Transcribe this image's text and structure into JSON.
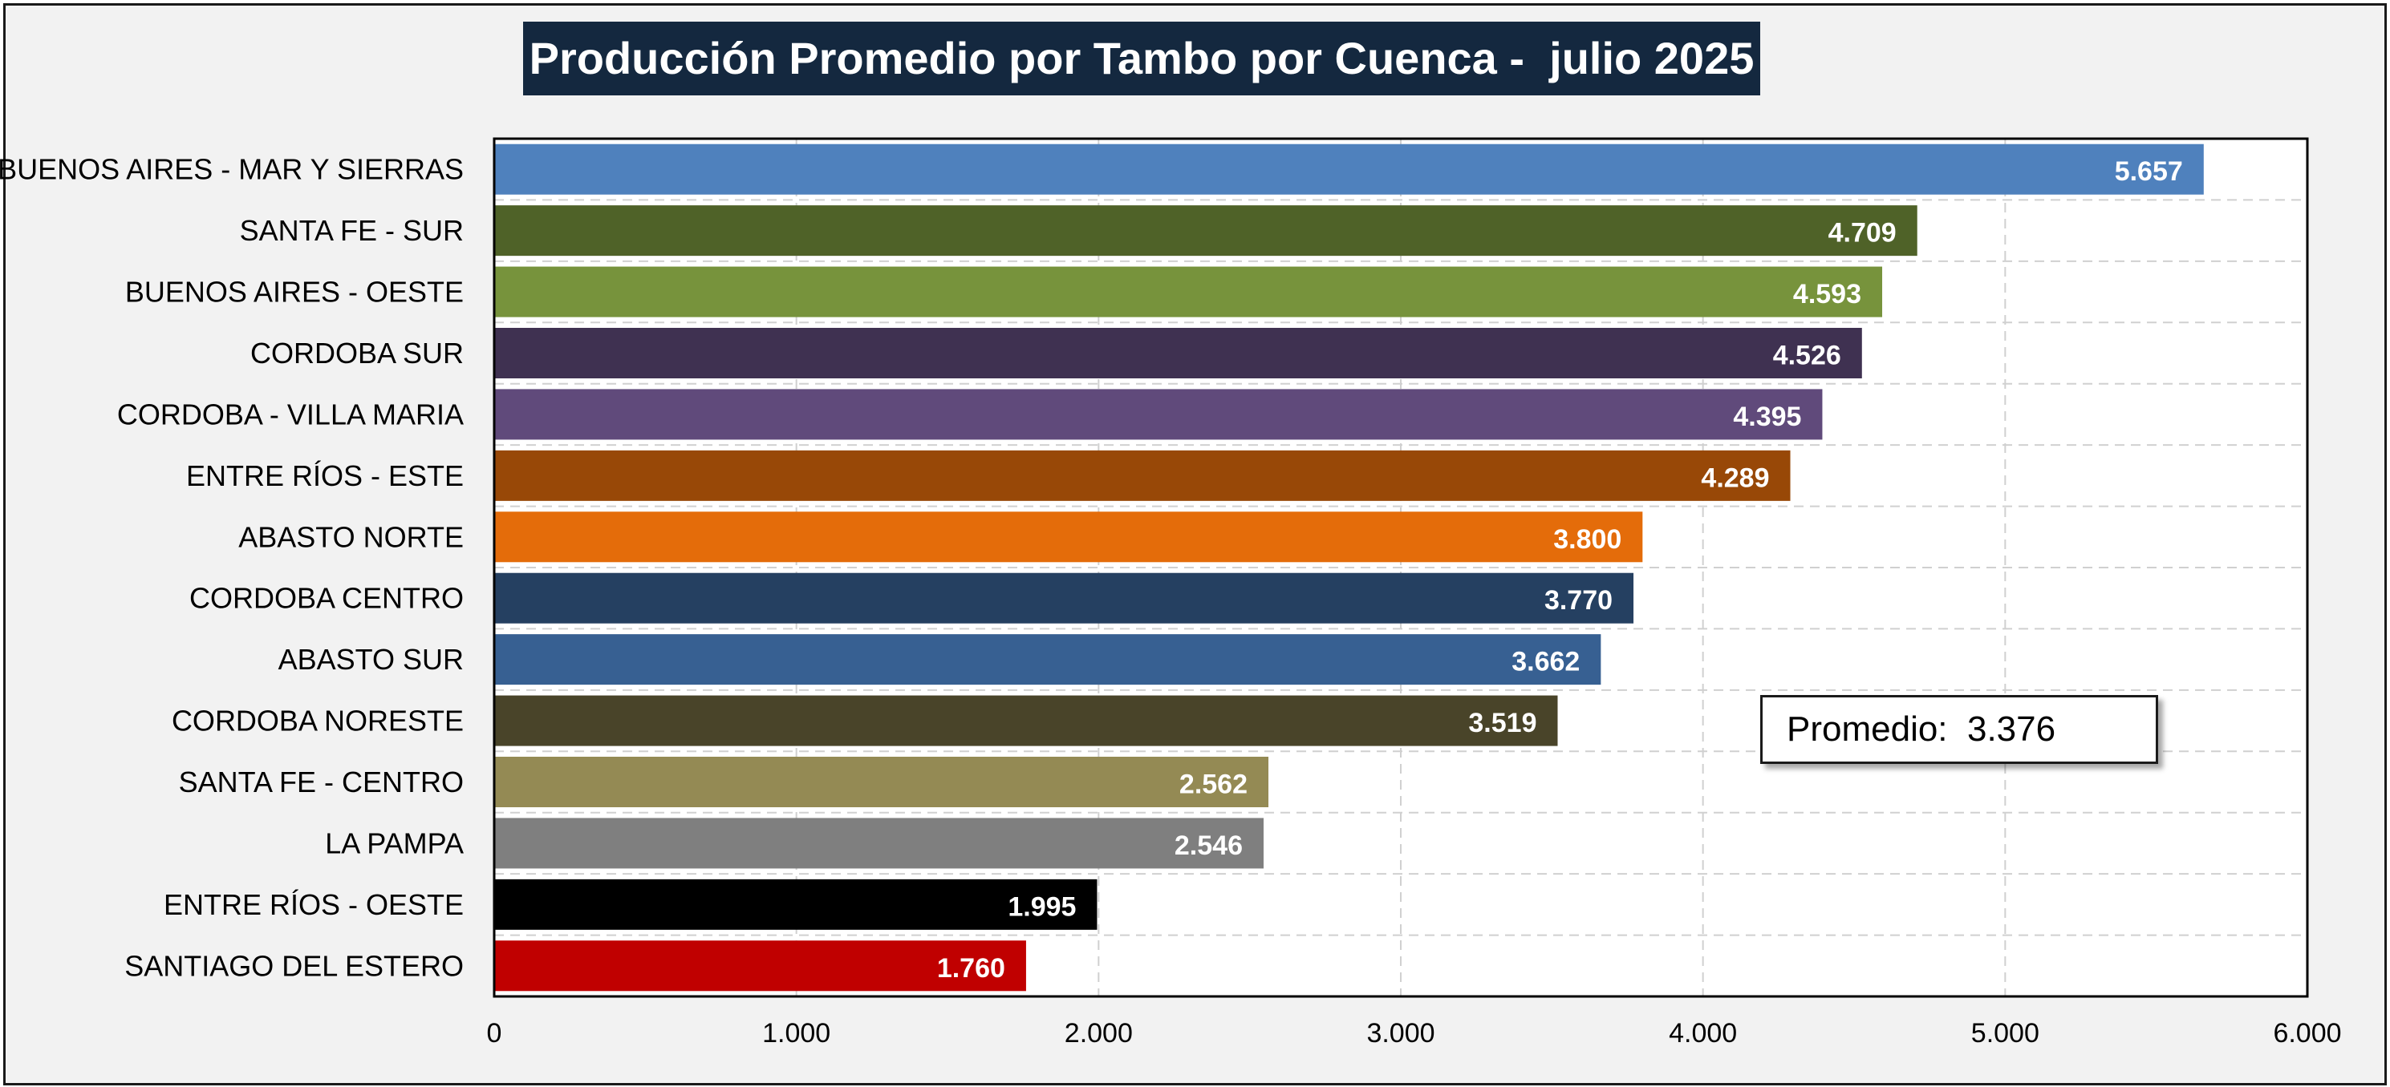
{
  "chart_data": {
    "type": "bar",
    "orientation": "horizontal",
    "title": "Producción Promedio por Tambo por Cuenca -  julio 2025",
    "categories": [
      "BUENOS AIRES - MAR Y SIERRAS",
      "SANTA FE - SUR",
      "BUENOS AIRES - OESTE",
      "CORDOBA SUR",
      "CORDOBA - VILLA MARIA",
      "ENTRE RÍOS - ESTE",
      "ABASTO NORTE",
      "CORDOBA CENTRO",
      "ABASTO SUR",
      "CORDOBA NORESTE",
      "SANTA FE - CENTRO",
      "LA PAMPA",
      "ENTRE RÍOS - OESTE",
      "SANTIAGO DEL ESTERO"
    ],
    "values": [
      5657,
      4709,
      4593,
      4526,
      4395,
      4289,
      3800,
      3770,
      3662,
      3519,
      2562,
      2546,
      1995,
      1760
    ],
    "value_labels": [
      "5.657",
      "4.709",
      "4.593",
      "4.526",
      "4.395",
      "4.289",
      "3.800",
      "3.770",
      "3.662",
      "3.519",
      "2.562",
      "2.546",
      "1.995",
      "1.760"
    ],
    "colors": [
      "#4f81bd",
      "#4f6228",
      "#77933c",
      "#3f3151",
      "#604a7b",
      "#984807",
      "#e46c0a",
      "#254061",
      "#376092",
      "#494429",
      "#948a54",
      "#7f7f7f",
      "#000000",
      "#c00000"
    ],
    "xlim": [
      0,
      6000
    ],
    "xticks": [
      0,
      1000,
      2000,
      3000,
      4000,
      5000,
      6000
    ],
    "xtick_labels": [
      "0",
      "1.000",
      "2.000",
      "3.000",
      "4.000",
      "5.000",
      "6.000"
    ],
    "grid": true,
    "xlabel": "",
    "ylabel": "",
    "average_label": "Promedio:  3.376",
    "average_value": 3376
  }
}
